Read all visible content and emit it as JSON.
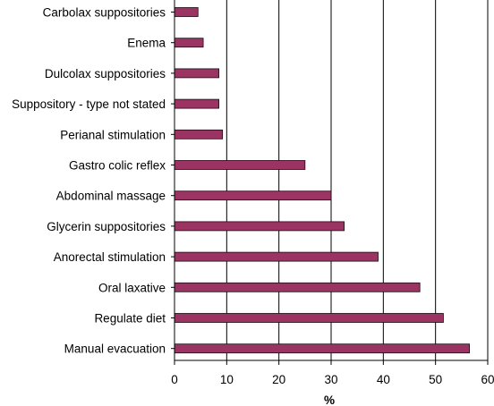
{
  "chart_data": {
    "type": "bar",
    "orientation": "horizontal",
    "categories": [
      "Carbolax suppositories",
      "Enema",
      "Dulcolax suppositories",
      "Suppository - type not stated",
      "Perianal stimulation",
      "Gastro colic reflex",
      "Abdominal massage",
      "Glycerin suppositories",
      "Anorectal stimulation",
      "Oral laxative",
      "Regulate diet",
      "Manual evacuation"
    ],
    "values": [
      4.5,
      5.5,
      8.5,
      8.5,
      9.2,
      25,
      30,
      32.5,
      39,
      47,
      51.5,
      56.5
    ],
    "xlabel": "%",
    "ylabel": "",
    "xlim": [
      0,
      60
    ],
    "xticks": [
      0,
      10,
      20,
      30,
      40,
      50,
      60
    ],
    "xtick_labels": [
      "0",
      "10",
      "20",
      "30",
      "40",
      "50",
      "60"
    ],
    "grid": "vertical",
    "legend": "none",
    "colors": {
      "bar_fill": "#9b3462",
      "bar_stroke": "#1a0a12",
      "grid": "#000000",
      "axis": "#000000"
    }
  }
}
